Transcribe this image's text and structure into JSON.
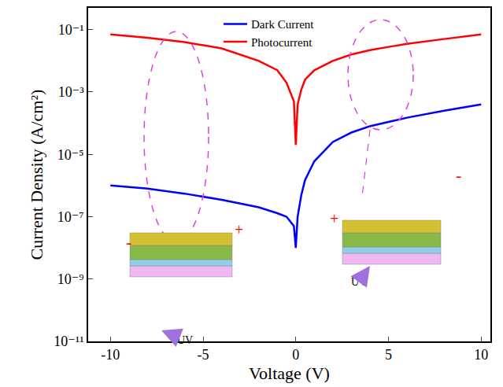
{
  "chart_data": {
    "type": "line",
    "x_label": "Voltage (V)",
    "y_label": "Current Density (A/cm²)",
    "log": "y",
    "grid": false,
    "legend": "top",
    "xlim": [
      -11.2,
      10.5
    ],
    "xticks": [
      -10,
      -5,
      0,
      5,
      10
    ],
    "ylim": [
      1e-11,
      0.5
    ],
    "yticks": [
      {
        "value": 1e-11,
        "label": "10⁻¹¹"
      },
      {
        "value": 1e-09,
        "label": "10⁻⁹"
      },
      {
        "value": 1e-07,
        "label": "10⁻⁷"
      },
      {
        "value": 1e-05,
        "label": "10⁻⁵"
      },
      {
        "value": 0.001,
        "label": "10⁻³"
      },
      {
        "value": 0.1,
        "label": "10⁻¹"
      }
    ],
    "x": [
      -10,
      -8,
      -6,
      -4,
      -2,
      -1,
      -0.5,
      -0.1,
      0,
      0.1,
      0.3,
      0.5,
      1,
      2,
      3,
      4,
      5,
      6,
      8,
      10
    ],
    "series": [
      {
        "name": "Dark Current",
        "color": "#0000ff",
        "values": [
          1e-06,
          8e-07,
          5.5e-07,
          3.5e-07,
          2e-07,
          1.3e-07,
          1e-07,
          5e-08,
          1e-08,
          1e-07,
          5e-07,
          1.5e-06,
          6e-06,
          2.5e-05,
          5e-05,
          8e-05,
          0.00011,
          0.00015,
          0.00025,
          0.0004
        ]
      },
      {
        "name": "Photocurrent",
        "color": "#ff0000",
        "values": [
          0.07,
          0.055,
          0.04,
          0.025,
          0.01,
          0.005,
          0.002,
          0.0005,
          2e-05,
          0.0004,
          0.0012,
          0.0025,
          0.005,
          0.01,
          0.016,
          0.022,
          0.028,
          0.035,
          0.05,
          0.07
        ]
      }
    ],
    "annotations": {
      "uv": "UV",
      "plus": "+",
      "minus": "-"
    }
  }
}
